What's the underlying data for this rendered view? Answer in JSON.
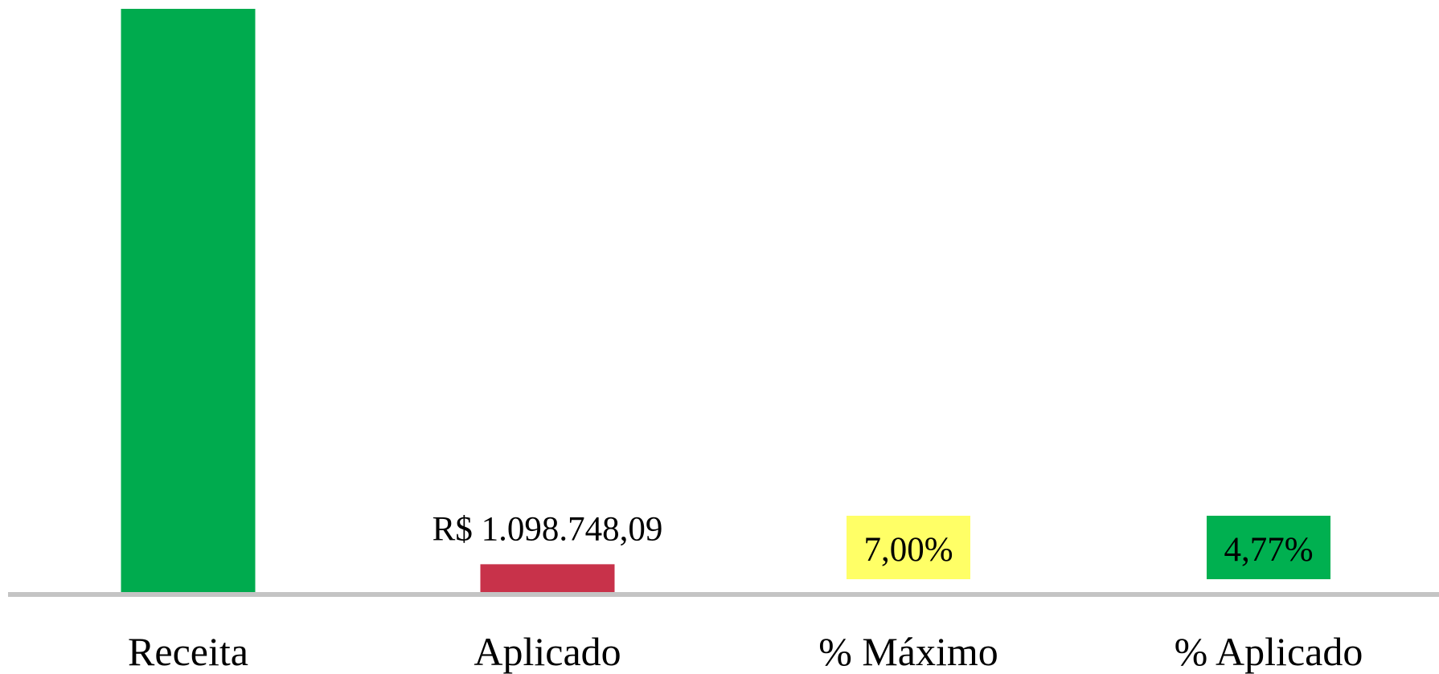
{
  "chart_data": {
    "type": "bar",
    "categories": [
      "Receita",
      "Aplicado",
      "% Máximo",
      "% Aplicado"
    ],
    "values": [
      23034551,
      1098748.09,
      7,
      4.77
    ],
    "value_labels": [
      null,
      "R$ 1.098.748,09",
      "7,00%",
      "4,77%"
    ],
    "colors": [
      "#00ab4e",
      "#c8324a",
      "#00ab4e",
      "#00ab4e"
    ],
    "label_box_colors": [
      null,
      null,
      "#ffff66",
      "#00b050"
    ]
  }
}
